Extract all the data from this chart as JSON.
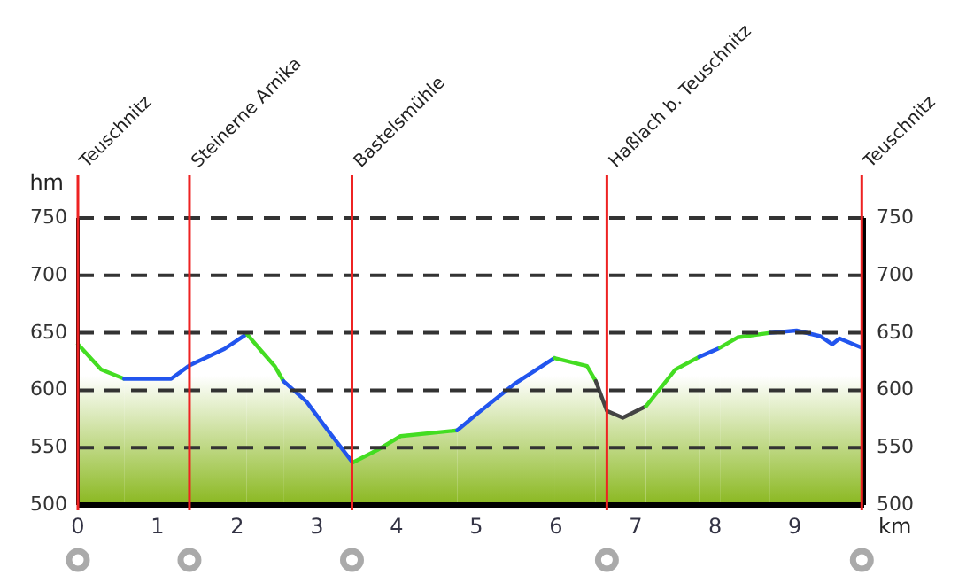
{
  "chart_data": {
    "type": "area",
    "xlabel": "km",
    "ylabel": "hm",
    "xlim": [
      0,
      9.87
    ],
    "xticks": [
      0,
      1,
      2,
      3,
      4,
      5,
      6,
      7,
      8,
      9
    ],
    "ylim": [
      500,
      750
    ],
    "yticks": [
      500,
      550,
      600,
      650,
      700,
      750
    ],
    "y2lim": [
      500,
      750
    ],
    "y2ticks": [
      500,
      550,
      600,
      650,
      700,
      750
    ],
    "grid": "y",
    "line_style": "solid",
    "series": [
      {
        "color": "#44dd22",
        "x": [
          0,
          0.29,
          0.58
        ],
        "values": [
          640,
          618,
          610
        ]
      },
      {
        "color": "#2255ee",
        "x": [
          0.58,
          1.17,
          1.41,
          1.84,
          2.12
        ],
        "values": [
          610,
          610,
          622,
          636,
          649
        ]
      },
      {
        "color": "#44dd22",
        "x": [
          2.12,
          2.28,
          2.47,
          2.58
        ],
        "values": [
          649,
          636,
          621,
          608
        ]
      },
      {
        "color": "#2255ee",
        "x": [
          2.58,
          2.87,
          3.17,
          3.45
        ],
        "values": [
          608,
          590,
          562,
          537
        ]
      },
      {
        "color": "#44dd22",
        "x": [
          3.45,
          3.76,
          4.05,
          4.76
        ],
        "values": [
          537,
          548,
          560,
          565
        ]
      },
      {
        "color": "#2255ee",
        "x": [
          4.76,
          5.02,
          5.47,
          5.98
        ],
        "values": [
          565,
          580,
          605,
          628
        ]
      },
      {
        "color": "#44dd22",
        "x": [
          5.98,
          6.39,
          6.5
        ],
        "values": [
          628,
          621,
          608
        ]
      },
      {
        "color": "#444444",
        "x": [
          6.5,
          6.64,
          6.84,
          7.13
        ],
        "values": [
          608,
          582,
          576,
          586
        ]
      },
      {
        "color": "#44dd22",
        "x": [
          7.13,
          7.5,
          7.8
        ],
        "values": [
          586,
          618,
          629
        ]
      },
      {
        "color": "#2255ee",
        "x": [
          7.8,
          7.93,
          8.06
        ],
        "values": [
          629,
          633,
          637
        ]
      },
      {
        "color": "#44dd22",
        "x": [
          8.06,
          8.28,
          8.69
        ],
        "values": [
          637,
          646,
          650
        ]
      },
      {
        "color": "#2255ee",
        "x": [
          8.69,
          9.02,
          9.32,
          9.47,
          9.56,
          9.84
        ],
        "values": [
          650,
          652,
          647,
          640,
          645,
          637
        ]
      }
    ],
    "ref_lines": [
      {
        "axis": "x",
        "value": 0,
        "label": "Teuschnitz",
        "color": "#ee2222"
      },
      {
        "axis": "x",
        "value": 1.4,
        "label": "Steinerne Arnika",
        "color": "#ee2222"
      },
      {
        "axis": "x",
        "value": 3.44,
        "label": "Bastelsmühle",
        "color": "#ee2222"
      },
      {
        "axis": "x",
        "value": 6.64,
        "label": "Haßlach b. Teuschnitz",
        "color": "#ee2222"
      },
      {
        "axis": "x",
        "value": 9.84,
        "label": "Teuschnitz",
        "color": "#ee2222"
      }
    ]
  }
}
